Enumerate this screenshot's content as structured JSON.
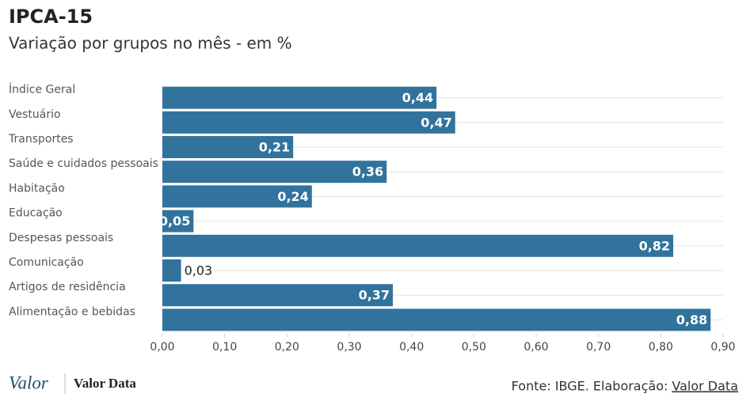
{
  "chart_data": {
    "type": "barh",
    "title": "IPCA-15",
    "subtitle": "Variação por grupos no mês - em %",
    "categories": [
      "Índice Geral",
      "Vestuário",
      "Transportes",
      "Saúde e cuidados pessoais",
      "Habitação",
      "Educação",
      "Despesas pessoais",
      "Comunicação",
      "Artigos de residência",
      "Alimentação e bebidas"
    ],
    "values": [
      0.44,
      0.47,
      0.21,
      0.36,
      0.24,
      0.05,
      0.82,
      0.03,
      0.37,
      0.88
    ],
    "value_labels": [
      "0,44",
      "0,47",
      "0,21",
      "0,36",
      "0,24",
      "0,05",
      "0,82",
      "0,03",
      "0,37",
      "0,88"
    ],
    "color": "#31739c",
    "xlim": [
      0,
      0.9
    ],
    "xticks": [
      {
        "value": 0,
        "label": "0,00"
      },
      {
        "value": 0.1,
        "label": "0,10"
      },
      {
        "value": 0.2,
        "label": "0,20"
      },
      {
        "value": 0.3,
        "label": "0,30"
      },
      {
        "value": 0.4,
        "label": "0,40"
      },
      {
        "value": 0.5,
        "label": "0,50"
      },
      {
        "value": 0.6,
        "label": "0,60"
      },
      {
        "value": 0.7,
        "label": "0,70"
      },
      {
        "value": 0.8,
        "label": "0,80"
      },
      {
        "value": 0.9,
        "label": "0,90"
      }
    ],
    "grid": true
  },
  "footer": {
    "logo": "Valor",
    "brand": "Valor Data",
    "source": "Fonte: IBGE. Elaboração:",
    "source_link": "Valor Data"
  }
}
